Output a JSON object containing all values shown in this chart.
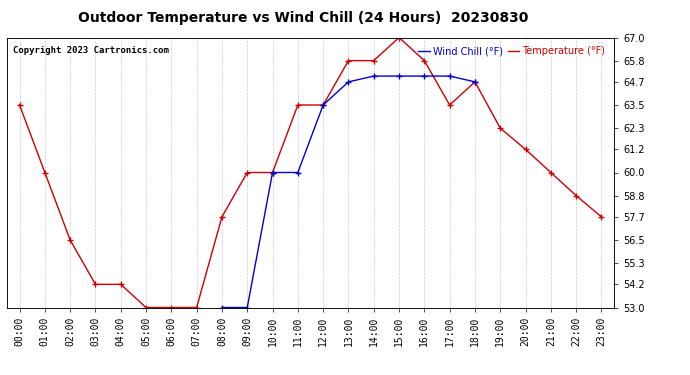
{
  "title": "Outdoor Temperature vs Wind Chill (24 Hours)  20230830",
  "copyright": "Copyright 2023 Cartronics.com",
  "legend_wind_chill": "Wind Chill (°F)",
  "legend_temperature": "Temperature (°F)",
  "x_labels": [
    "00:00",
    "01:00",
    "02:00",
    "03:00",
    "04:00",
    "05:00",
    "06:00",
    "07:00",
    "08:00",
    "09:00",
    "10:00",
    "11:00",
    "12:00",
    "13:00",
    "14:00",
    "15:00",
    "16:00",
    "17:00",
    "18:00",
    "19:00",
    "20:00",
    "21:00",
    "22:00",
    "23:00"
  ],
  "temperature": [
    63.5,
    60.0,
    56.5,
    54.2,
    54.2,
    53.0,
    53.0,
    53.0,
    57.7,
    60.0,
    60.0,
    63.5,
    63.5,
    65.8,
    65.8,
    67.0,
    65.8,
    63.5,
    64.7,
    62.3,
    61.2,
    60.0,
    58.8,
    57.7
  ],
  "wind_chill": [
    null,
    null,
    null,
    null,
    null,
    null,
    null,
    null,
    53.0,
    53.0,
    60.0,
    60.0,
    63.5,
    64.7,
    65.0,
    65.0,
    65.0,
    65.0,
    64.7,
    null,
    null,
    null,
    null,
    null
  ],
  "ylim": [
    53.0,
    67.0
  ],
  "yticks": [
    53.0,
    54.2,
    55.3,
    56.5,
    57.7,
    58.8,
    60.0,
    61.2,
    62.3,
    63.5,
    64.7,
    65.8,
    67.0
  ],
  "temp_color": "#cc0000",
  "wind_chill_color": "#0000cc",
  "grid_color": "#cccccc",
  "background_color": "#ffffff",
  "title_fontsize": 10,
  "tick_fontsize": 7,
  "copyright_fontsize": 6.5
}
